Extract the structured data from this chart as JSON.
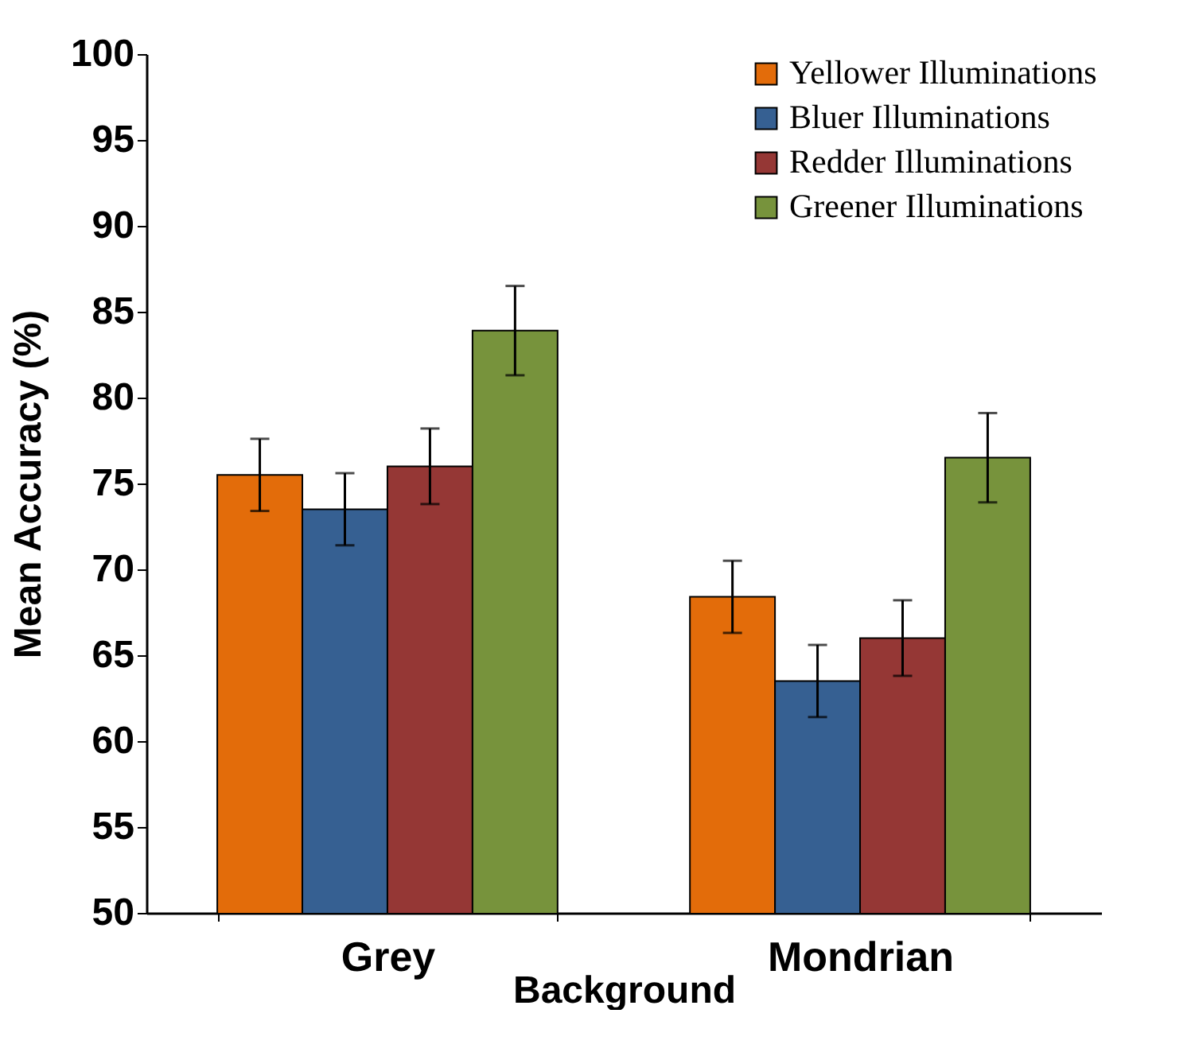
{
  "chart_data": {
    "type": "bar",
    "xlabel": "Background",
    "ylabel": "Mean Accuracy (%)",
    "categories": [
      "Grey",
      "Mondrian"
    ],
    "series": [
      {
        "name": "Yellower Illuminations",
        "color": "#e36c0a",
        "values": [
          75.5,
          68.4
        ],
        "errors": [
          2.1,
          2.1
        ]
      },
      {
        "name": "Bluer Illuminations",
        "color": "#366092",
        "values": [
          73.5,
          63.5
        ],
        "errors": [
          2.1,
          2.1
        ]
      },
      {
        "name": "Redder Illuminations",
        "color": "#953735",
        "values": [
          76,
          66
        ],
        "errors": [
          2.2,
          2.2
        ]
      },
      {
        "name": "Greener Illuminations",
        "color": "#77933c",
        "values": [
          83.9,
          76.5
        ],
        "errors": [
          2.6,
          2.6
        ]
      }
    ],
    "ylim": [
      50,
      100
    ],
    "yticks": [
      50,
      55,
      60,
      65,
      70,
      75,
      80,
      85,
      90,
      95,
      100
    ],
    "grid": false,
    "legend": "top right"
  }
}
